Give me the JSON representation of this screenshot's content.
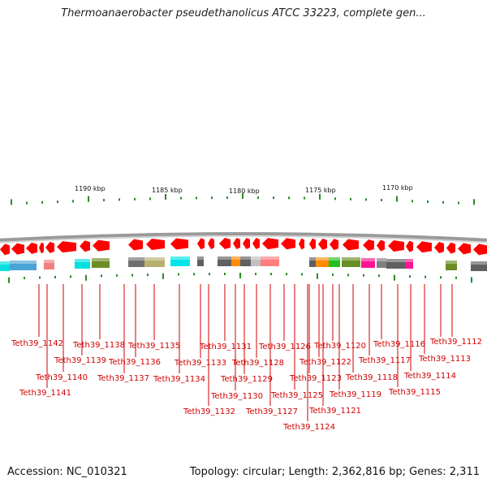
{
  "title": "Thermoanaerobacter pseudethanolicus ATCC 33223, complete gen...",
  "footer": {
    "accession": "Accession: NC_010321",
    "topology": "Topology: circular; Length: 2,362,816 bp; Genes: 2,311"
  },
  "scale_labels": [
    "1190 kbp",
    "1185 kbp",
    "1180 kbp",
    "1175 kbp",
    "1170 kbp"
  ],
  "colors": {
    "gene_arrow": "#ff0000",
    "backbone": "#999999",
    "tick": "#2a8a2a",
    "label": "#d00000"
  },
  "genes": [
    "Teth39_1142",
    "Teth39_1141",
    "Teth39_1140",
    "Teth39_1139",
    "Teth39_1138",
    "Teth39_1137",
    "Teth39_1136",
    "Teth39_1135",
    "Teth39_1134",
    "Teth39_1133",
    "Teth39_1132",
    "Teth39_1131",
    "Teth39_1130",
    "Teth39_1129",
    "Teth39_1128",
    "Teth39_1127",
    "Teth39_1126",
    "Teth39_1125",
    "Teth39_1124",
    "Teth39_1123",
    "Teth39_1122",
    "Teth39_1121",
    "Teth39_1120",
    "Teth39_1119",
    "Teth39_1118",
    "Teth39_1117",
    "Teth39_1116",
    "Teth39_1115",
    "Teth39_1114",
    "Teth39_1113",
    "Teth39_1112"
  ],
  "cog_colors": [
    "#4aa3d6",
    "#5b8fbf",
    "#f08080",
    "#2020ff",
    "#00e0e0",
    "#6b8e23",
    "#707070",
    "#b8b070",
    "#00e5e5",
    "#606060",
    "#ff8c00",
    "#c0c0c0",
    "#ff7f7f",
    "#20c020",
    "#ff1493",
    "#808080"
  ]
}
